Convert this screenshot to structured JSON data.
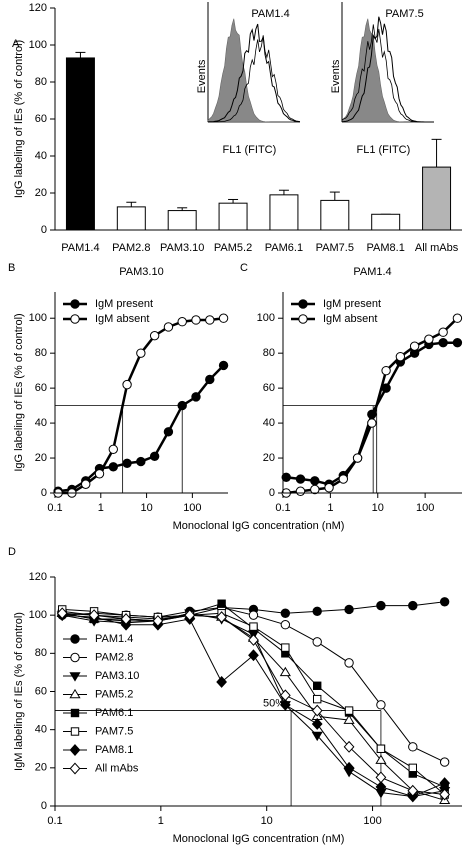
{
  "chart_data": [
    {
      "type": "bar",
      "panel": "A",
      "ylabel": "IgG labeling of IEs (% of control)",
      "categories": [
        "PAM1.4",
        "PAM2.8",
        "PAM3.10",
        "PAM5.2",
        "PAM6.1",
        "PAM7.5",
        "PAM8.1",
        "All mAbs"
      ],
      "values": [
        93,
        12.5,
        10.5,
        14.5,
        19,
        16,
        8.5,
        34
      ],
      "errors": [
        3,
        2.5,
        1.5,
        2,
        2.5,
        4.5,
        0,
        15
      ],
      "colors": [
        "#000000",
        "#ffffff",
        "#ffffff",
        "#ffffff",
        "#ffffff",
        "#ffffff",
        "#ffffff",
        "#b4b4b4"
      ],
      "ylim": [
        0,
        120
      ],
      "yticks": [
        0,
        20,
        40,
        60,
        80,
        100,
        120
      ],
      "insets": [
        {
          "title": "PAM1.4",
          "ylabel": "Events",
          "xlabel": "FL1 (FITC)"
        },
        {
          "title": "PAM7.5",
          "ylabel": "Events",
          "xlabel": "FL1 (FITC)"
        }
      ]
    },
    {
      "type": "line",
      "panel": "B",
      "title": "PAM3.10",
      "ylabel": "IgG labeling of IEs (% of control)",
      "xlabel": "Monoclonal IgG concentration (nM)",
      "log_x": true,
      "legend": "upper left",
      "x": [
        0.117,
        0.234,
        0.469,
        0.938,
        1.875,
        3.75,
        7.5,
        15,
        30,
        60,
        120,
        240,
        480
      ],
      "series": [
        {
          "name": "IgM present",
          "color": "#000000",
          "marker": "circle",
          "marker_fill": "#000000",
          "values": [
            1,
            2,
            7,
            14,
            15,
            17,
            18,
            21,
            35,
            50,
            55,
            65,
            73
          ]
        },
        {
          "name": "IgM absent",
          "color": "#000000",
          "marker": "circle",
          "marker_fill": "#ffffff",
          "values": [
            0,
            0,
            5,
            11,
            25,
            62,
            80,
            90,
            95,
            98,
            99,
            99,
            100
          ]
        }
      ],
      "ref_y": 50,
      "ref_x": [
        60,
        3
      ],
      "xlim": [
        0.1,
        600
      ],
      "xticks": [
        0.1,
        1,
        10,
        100
      ],
      "ylim": [
        0,
        115
      ],
      "yticks": [
        0,
        20,
        40,
        60,
        80,
        100
      ]
    },
    {
      "type": "line",
      "panel": "C",
      "title": "PAM1.4",
      "log_x": true,
      "legend": "upper left",
      "x": [
        0.117,
        0.234,
        0.469,
        0.938,
        1.875,
        3.75,
        7.5,
        15,
        30,
        60,
        120,
        240,
        480
      ],
      "series": [
        {
          "name": "IgM present",
          "color": "#000000",
          "marker": "circle",
          "marker_fill": "#000000",
          "values": [
            9,
            8,
            7,
            5,
            10,
            20,
            45,
            60,
            75,
            80,
            85,
            86,
            86
          ]
        },
        {
          "name": "IgM absent",
          "color": "#000000",
          "marker": "circle",
          "marker_fill": "#ffffff",
          "values": [
            0,
            1,
            2,
            3,
            8,
            20,
            40,
            70,
            78,
            84,
            88,
            92,
            100
          ]
        }
      ],
      "ref_y": 50,
      "ref_x": [
        8,
        9.5
      ],
      "xlim": [
        0.1,
        600
      ],
      "xticks": [
        0.1,
        1,
        10,
        100
      ],
      "ylim": [
        0,
        115
      ],
      "yticks": [
        0,
        20,
        40,
        60,
        80,
        100
      ]
    },
    {
      "type": "line",
      "panel": "D",
      "ylabel": "IgM labeling of IEs (% of control)",
      "xlabel": "Monoclonal IgG concentration (nM)",
      "log_x": true,
      "legend": "center left",
      "x": [
        0.117,
        0.234,
        0.469,
        0.938,
        1.875,
        3.75,
        7.5,
        15,
        30,
        60,
        120,
        240,
        480
      ],
      "series": [
        {
          "name": "PAM1.4",
          "color": "#000000",
          "marker": "circle",
          "marker_fill": "#000000",
          "values": [
            100,
            101,
            100,
            99,
            102,
            104,
            103,
            101,
            102,
            103,
            105,
            105,
            107
          ]
        },
        {
          "name": "PAM2.8",
          "color": "#000000",
          "marker": "circle",
          "marker_fill": "#ffffff",
          "values": [
            102,
            100,
            99,
            98,
            100,
            104,
            100,
            95,
            86,
            75,
            53,
            31,
            23
          ]
        },
        {
          "name": "PAM3.10",
          "color": "#000000",
          "marker": "triangle-down",
          "marker_fill": "#000000",
          "values": [
            100,
            97,
            96,
            97,
            101,
            98,
            90,
            53,
            37,
            18,
            7,
            5,
            8
          ]
        },
        {
          "name": "PAM5.2",
          "color": "#000000",
          "marker": "triangle-up",
          "marker_fill": "#ffffff",
          "values": [
            101,
            98,
            98,
            97,
            100,
            99,
            88,
            70,
            47,
            45,
            24,
            8,
            3
          ]
        },
        {
          "name": "PAM6.1",
          "color": "#000000",
          "marker": "square",
          "marker_fill": "#000000",
          "values": [
            101,
            98,
            97,
            97,
            101,
            106,
            93,
            80,
            63,
            49,
            30,
            17,
            10
          ]
        },
        {
          "name": "PAM7.5",
          "color": "#000000",
          "marker": "square",
          "marker_fill": "#ffffff",
          "values": [
            103,
            102,
            100,
            99,
            100,
            101,
            94,
            83,
            56,
            50,
            30,
            20,
            6
          ]
        },
        {
          "name": "PAM8.1",
          "color": "#000000",
          "marker": "diamond",
          "marker_fill": "#000000",
          "values": [
            100,
            99,
            95,
            95,
            98,
            65,
            79,
            53,
            43,
            20,
            10,
            5,
            12
          ]
        },
        {
          "name": "All mAbs",
          "color": "#000000",
          "marker": "diamond",
          "marker_fill": "#ffffff",
          "values": [
            101,
            100,
            98,
            97,
            100,
            99,
            87,
            58,
            50,
            31,
            15,
            8,
            6
          ]
        }
      ],
      "ref_y": 50,
      "ref_x": [
        17,
        120
      ],
      "annotation": "50%",
      "xlim": [
        0.1,
        700
      ],
      "xticks": [
        0.1,
        1,
        10,
        100
      ],
      "ylim": [
        0,
        120
      ],
      "yticks": [
        0,
        20,
        40,
        60,
        80,
        100,
        120
      ]
    }
  ]
}
